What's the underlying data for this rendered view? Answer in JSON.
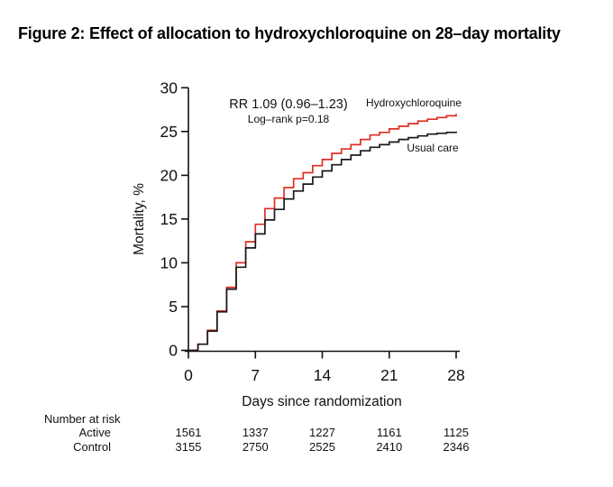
{
  "title": "Figure 2: Effect of allocation to hydroxychloroquine on 28–day mortality",
  "colors": {
    "active": "#df2f27",
    "control": "#1a1a1a"
  },
  "chart_data": {
    "type": "line",
    "subtype": "kaplan-meier-step",
    "title": "",
    "xlabel": "Days since randomization",
    "ylabel": "Mortality, %",
    "xlim": [
      0,
      28
    ],
    "ylim": [
      0,
      30
    ],
    "xticks": [
      0,
      7,
      14,
      21,
      28
    ],
    "yticks": [
      0,
      5,
      10,
      15,
      20,
      25,
      30
    ],
    "grid": false,
    "legend_position": "inline-labels",
    "annotations": {
      "rr": "RR 1.09 (0.96–1.23)",
      "logrank": "Log–rank p=0.18"
    },
    "x": [
      0,
      1,
      2,
      3,
      4,
      5,
      6,
      7,
      8,
      9,
      10,
      11,
      12,
      13,
      14,
      15,
      16,
      17,
      18,
      19,
      20,
      21,
      22,
      23,
      24,
      25,
      26,
      27,
      28
    ],
    "series": [
      {
        "name": "Hydroxychloroquine",
        "color": "#df2f27",
        "values": [
          0,
          0.7,
          2.3,
          4.5,
          7.2,
          10.0,
          12.4,
          14.4,
          16.2,
          17.4,
          18.6,
          19.6,
          20.3,
          21.1,
          21.8,
          22.5,
          23.0,
          23.5,
          24.1,
          24.6,
          24.9,
          25.3,
          25.6,
          25.9,
          26.2,
          26.4,
          26.6,
          26.8,
          27.0
        ]
      },
      {
        "name": "Usual care",
        "color": "#1a1a1a",
        "values": [
          0,
          0.7,
          2.2,
          4.4,
          7.0,
          9.5,
          11.7,
          13.3,
          14.9,
          16.1,
          17.3,
          18.2,
          19.0,
          19.8,
          20.5,
          21.2,
          21.8,
          22.3,
          22.8,
          23.2,
          23.5,
          23.8,
          24.1,
          24.3,
          24.5,
          24.7,
          24.8,
          24.9,
          25.0
        ]
      }
    ]
  },
  "risk_table": {
    "header": "Number at risk",
    "columns_days": [
      0,
      7,
      14,
      21,
      28
    ],
    "rows": [
      {
        "label": "Active",
        "color": "#df2f27",
        "values": [
          "1561",
          "1337",
          "1227",
          "1161",
          "1125"
        ]
      },
      {
        "label": "Control",
        "color": "#1a1a1a",
        "values": [
          "3155",
          "2750",
          "2525",
          "2410",
          "2346"
        ]
      }
    ]
  }
}
